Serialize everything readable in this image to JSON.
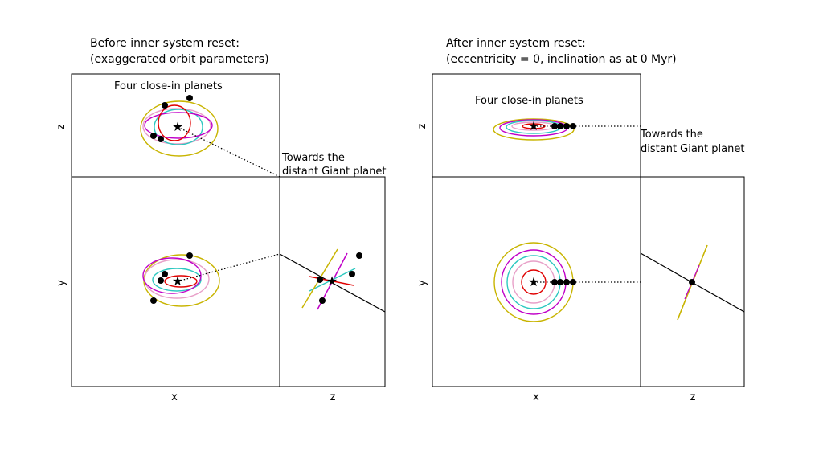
{
  "panels": [
    {
      "title": [
        "Before inner system reset:",
        "(exaggerated orbit parameters)"
      ],
      "annotation": "Four close-in planets",
      "pointer": [
        "Towards the",
        "distant Giant planet"
      ],
      "axes": {
        "top_ylabel": "z",
        "main_ylabel": "y",
        "main_xlabel": "x",
        "side_xlabel": "z"
      }
    },
    {
      "title": [
        "After inner system reset:",
        "(eccentricity = 0, inclination as at 0 Myr)"
      ],
      "annotation": "Four close-in planets",
      "pointer": [
        "Towards the",
        "distant Giant planet"
      ],
      "axes": {
        "top_ylabel": "z",
        "main_ylabel": "y",
        "main_xlabel": "x",
        "side_xlabel": "z"
      }
    }
  ]
}
